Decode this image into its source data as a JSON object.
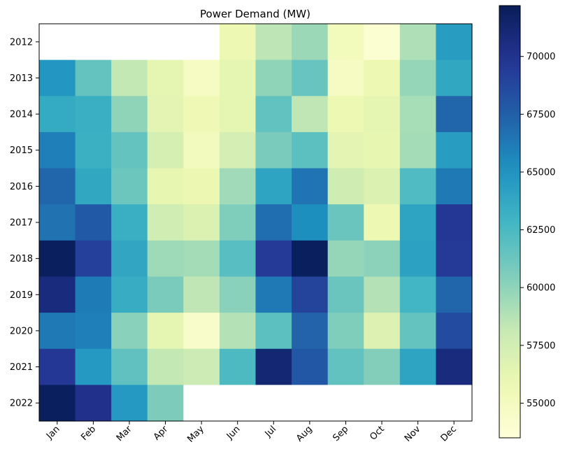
{
  "chart_data": {
    "type": "heatmap",
    "title": "Power Demand (MW)",
    "x_categories": [
      "Jan",
      "Feb",
      "Mar",
      "Apr",
      "May",
      "Jun",
      "Jul",
      "Aug",
      "Sep",
      "Oct",
      "Nov",
      "Dec"
    ],
    "y_categories": [
      "2012",
      "2013",
      "2014",
      "2015",
      "2016",
      "2017",
      "2018",
      "2019",
      "2020",
      "2021",
      "2022"
    ],
    "values": [
      [
        null,
        null,
        null,
        null,
        null,
        55800,
        58500,
        59600,
        55200,
        54000,
        59000,
        64500
      ],
      [
        64800,
        61500,
        58300,
        56300,
        54800,
        56300,
        60000,
        61400,
        54700,
        55800,
        59800,
        63800
      ],
      [
        63600,
        63300,
        60000,
        56400,
        55600,
        56300,
        61600,
        58400,
        55800,
        56300,
        59200,
        67200
      ],
      [
        66000,
        63200,
        61500,
        57300,
        55100,
        57400,
        60700,
        61800,
        56400,
        56200,
        59300,
        64400
      ],
      [
        67200,
        63800,
        61200,
        56200,
        55900,
        59400,
        64000,
        66500,
        57700,
        57000,
        62300,
        66300
      ],
      [
        66600,
        67800,
        63300,
        57600,
        57000,
        60500,
        66800,
        65300,
        61300,
        55800,
        64000,
        69700
      ],
      [
        72000,
        69200,
        63900,
        59500,
        59300,
        62000,
        69600,
        72000,
        59800,
        60100,
        64200,
        69600
      ],
      [
        70800,
        66200,
        63500,
        60700,
        58400,
        60200,
        66300,
        69000,
        61300,
        58800,
        62800,
        67200
      ],
      [
        66300,
        66000,
        60200,
        56300,
        54400,
        58800,
        61800,
        67300,
        60500,
        56800,
        61500,
        68600
      ],
      [
        69700,
        64700,
        61700,
        58300,
        57800,
        62400,
        71200,
        67900,
        61600,
        60400,
        64000,
        70800
      ],
      [
        72000,
        70200,
        64700,
        60600,
        null,
        null,
        null,
        null,
        null,
        null,
        null,
        null
      ]
    ],
    "colormap": "YlGnBu",
    "vmin": 53500,
    "vmax": 72200,
    "colorbar_ticks": [
      "55000",
      "57500",
      "60000",
      "62500",
      "65000",
      "67500",
      "70000"
    ],
    "missing_color": "#ffffff"
  }
}
